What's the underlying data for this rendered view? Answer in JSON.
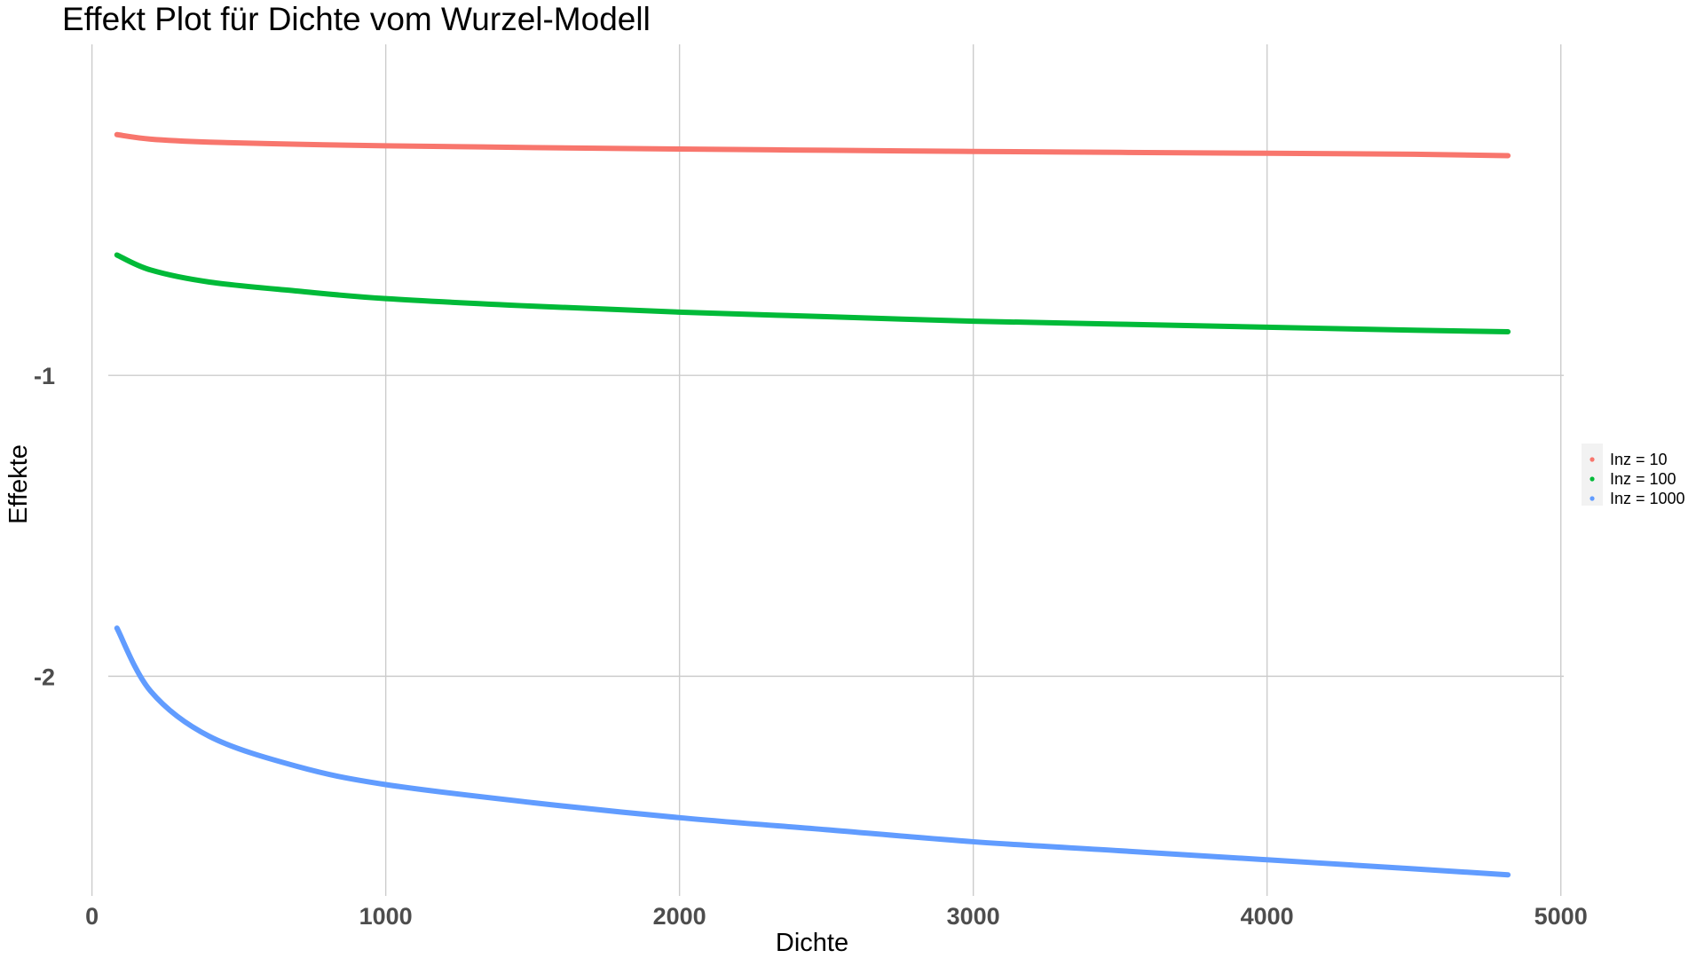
{
  "chart_data": {
    "type": "line",
    "title": "Effekt Plot für Dichte vom Wurzel-Modell",
    "xlabel": "Dichte",
    "ylabel": "Effekte",
    "xlim": [
      -20,
      5010
    ],
    "ylim": [
      -2.73,
      0.1
    ],
    "x_ticks": [
      0,
      1000,
      2000,
      3000,
      4000,
      5000
    ],
    "x_tick_labels": [
      "0",
      "1000",
      "2000",
      "3000",
      "4000",
      "5000"
    ],
    "y_ticks": [
      -1,
      -2
    ],
    "y_tick_labels": [
      "-1",
      "-2"
    ],
    "grid": true,
    "legend_position": "right",
    "x": [
      85,
      200,
      400,
      700,
      1000,
      1500,
      2000,
      2500,
      3000,
      3500,
      4000,
      4500,
      4820
    ],
    "series": [
      {
        "name": "Inz = 10",
        "color": "#F8766D",
        "values": [
          -0.2,
          -0.215,
          -0.225,
          -0.232,
          -0.237,
          -0.243,
          -0.248,
          -0.252,
          -0.256,
          -0.259,
          -0.262,
          -0.265,
          -0.27
        ]
      },
      {
        "name": "Inz = 100",
        "color": "#00BA38",
        "values": [
          -0.6,
          -0.65,
          -0.69,
          -0.72,
          -0.745,
          -0.77,
          -0.79,
          -0.805,
          -0.82,
          -0.83,
          -0.84,
          -0.85,
          -0.855
        ]
      },
      {
        "name": "Inz = 1000",
        "color": "#619CFF",
        "values": [
          -1.84,
          -2.05,
          -2.2,
          -2.3,
          -2.36,
          -2.42,
          -2.47,
          -2.51,
          -2.55,
          -2.58,
          -2.61,
          -2.64,
          -2.66
        ]
      }
    ]
  }
}
